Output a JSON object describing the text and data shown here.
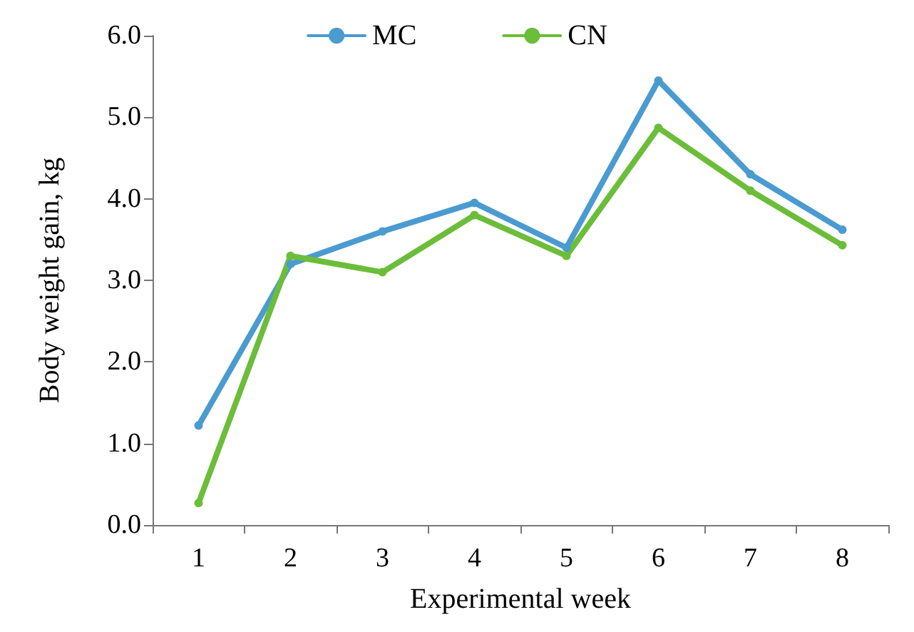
{
  "chart_data": {
    "type": "line",
    "xlabel": "Experimental week",
    "ylabel": "Body weight gain, kg",
    "categories": [
      "1",
      "2",
      "3",
      "4",
      "5",
      "6",
      "7",
      "8"
    ],
    "series": [
      {
        "name": "MC",
        "color": "#4a9bd0",
        "values": [
          1.22,
          3.2,
          3.6,
          3.95,
          3.4,
          5.45,
          4.3,
          3.62
        ]
      },
      {
        "name": "CN",
        "color": "#6cbd3a",
        "values": [
          0.27,
          3.3,
          3.1,
          3.8,
          3.3,
          4.87,
          4.1,
          3.43
        ]
      }
    ],
    "ylim": [
      0,
      6
    ],
    "yticks": [
      {
        "value": 0,
        "label": "0.0"
      },
      {
        "value": 1,
        "label": "1.0"
      },
      {
        "value": 2,
        "label": "2.0"
      },
      {
        "value": 3,
        "label": "3.0"
      },
      {
        "value": 4,
        "label": "4.0"
      },
      {
        "value": 5,
        "label": "5.0"
      },
      {
        "value": 6,
        "label": "6.0"
      }
    ],
    "grid": false,
    "legend": "top",
    "marker": "circle",
    "line_style": "solid"
  }
}
